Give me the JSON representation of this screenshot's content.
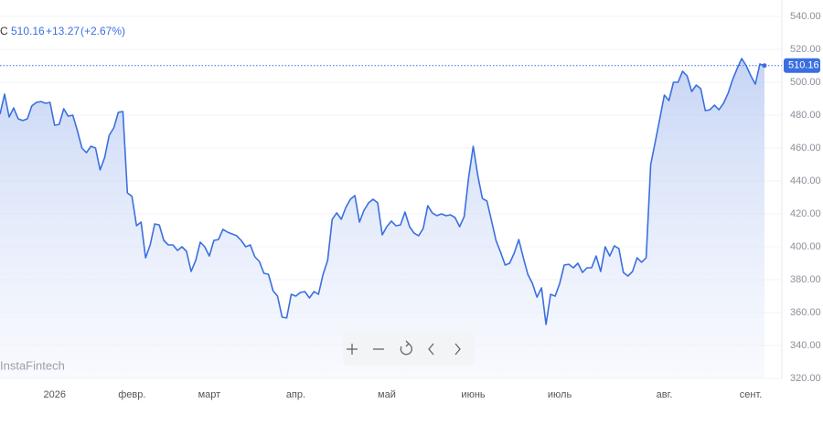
{
  "header": {
    "symbol": "C",
    "price": "510.16",
    "change": "+13.27",
    "change_pct": "(+2.67%)"
  },
  "watermark": "InstaFintech",
  "chart_data": {
    "type": "area",
    "color": "#3b6fe0",
    "ylim": [
      320,
      540
    ],
    "yticks": [
      {
        "value": 320,
        "label": "320.00"
      },
      {
        "value": 340,
        "label": "340.00"
      },
      {
        "value": 360,
        "label": "360.00"
      },
      {
        "value": 380,
        "label": "380.00"
      },
      {
        "value": 400,
        "label": "400.00"
      },
      {
        "value": 420,
        "label": "420.00"
      },
      {
        "value": 440,
        "label": "440.00"
      },
      {
        "value": 460,
        "label": "460.00"
      },
      {
        "value": 480,
        "label": "480.00"
      },
      {
        "value": 500,
        "label": "500.00"
      },
      {
        "value": 520,
        "label": "520.00"
      },
      {
        "value": 540,
        "label": "540.00"
      }
    ],
    "price_line": {
      "value": 510.16,
      "label": "510.16"
    },
    "categories": [
      null,
      null,
      null,
      null,
      null,
      null,
      null,
      null,
      null,
      null,
      null,
      null,
      "2026",
      null,
      null,
      null,
      null,
      null,
      null,
      null,
      null,
      null,
      null,
      null,
      null,
      null,
      null,
      null,
      null,
      "февр.",
      null,
      null,
      null,
      null,
      null,
      null,
      null,
      null,
      null,
      null,
      null,
      null,
      null,
      null,
      null,
      null,
      "март",
      null,
      null,
      null,
      null,
      null,
      null,
      null,
      null,
      null,
      null,
      null,
      null,
      null,
      null,
      null,
      null,
      null,
      null,
      "апр.",
      null,
      null,
      null,
      null,
      null,
      null,
      null,
      null,
      null,
      null,
      null,
      null,
      null,
      null,
      null,
      null,
      null,
      null,
      null,
      "май",
      null,
      null,
      null,
      null,
      null,
      null,
      null,
      null,
      null,
      null,
      null,
      null,
      null,
      null,
      null,
      null,
      null,
      null,
      "июнь",
      null,
      null,
      null,
      null,
      null,
      null,
      null,
      null,
      null,
      null,
      null,
      null,
      null,
      null,
      null,
      null,
      null,
      null,
      "июль",
      null,
      null,
      null,
      null,
      null,
      null,
      null,
      null,
      null,
      null,
      null,
      null,
      null,
      null,
      null,
      null,
      null,
      null,
      null,
      null,
      null,
      null,
      "авг.",
      null,
      null,
      null,
      null,
      null,
      null,
      null,
      null,
      null,
      null,
      null,
      null,
      null,
      null,
      null,
      null,
      null,
      null,
      "сент.",
      null,
      null,
      null
    ],
    "series": [
      {
        "name": "C",
        "values": [
          480.6,
          492.8,
          478.9,
          484.4,
          477.8,
          476.7,
          477.8,
          485.6,
          487.8,
          488.3,
          487.2,
          487.8,
          473.9,
          474.4,
          483.9,
          479.4,
          480,
          470.6,
          460,
          457.2,
          461.1,
          460,
          446.7,
          454.4,
          467.8,
          472.2,
          481.7,
          482.2,
          432.8,
          430.6,
          412.8,
          415,
          393.3,
          401.1,
          413.9,
          413.3,
          403.9,
          401.1,
          401.1,
          397.8,
          400,
          397.2,
          385,
          391.7,
          402.8,
          400,
          394.4,
          403.9,
          404.4,
          410.6,
          408.9,
          407.8,
          406.7,
          403.9,
          400,
          401.1,
          393.9,
          391.1,
          383.9,
          383.3,
          373.3,
          370,
          357.2,
          356.7,
          371.1,
          370,
          372.2,
          372.8,
          368.9,
          372.8,
          371.1,
          383.3,
          391.7,
          416.7,
          420.6,
          416.7,
          423.9,
          428.9,
          431.1,
          415,
          422.2,
          426.7,
          428.9,
          426.7,
          407.2,
          412.2,
          415.6,
          412.8,
          413.3,
          421.1,
          412.2,
          408.3,
          406.7,
          411.1,
          425,
          420.6,
          418.9,
          420,
          418.9,
          419.4,
          417.8,
          412.2,
          418.3,
          442.2,
          461.1,
          443.3,
          429.4,
          427.8,
          416.1,
          403.9,
          396.7,
          388.9,
          390,
          396.1,
          404.4,
          393.3,
          383.3,
          377.8,
          369.4,
          375,
          352.8,
          371.1,
          370,
          377.8,
          388.9,
          389.4,
          387.2,
          390,
          384.4,
          387.2,
          387.2,
          394.4,
          385,
          400,
          394.4,
          400.6,
          398.9,
          384.4,
          382.2,
          385,
          393.3,
          390.6,
          393.3,
          450,
          463.9,
          477.8,
          492.2,
          488.9,
          500,
          500,
          506.7,
          503.9,
          494.4,
          498.3,
          496.1,
          482.8,
          483.3,
          486.1,
          483.3,
          487.2,
          493.3,
          501.7,
          508.3,
          514.4,
          510,
          503.9,
          498.9,
          511.1,
          510.16
        ]
      }
    ]
  }
}
